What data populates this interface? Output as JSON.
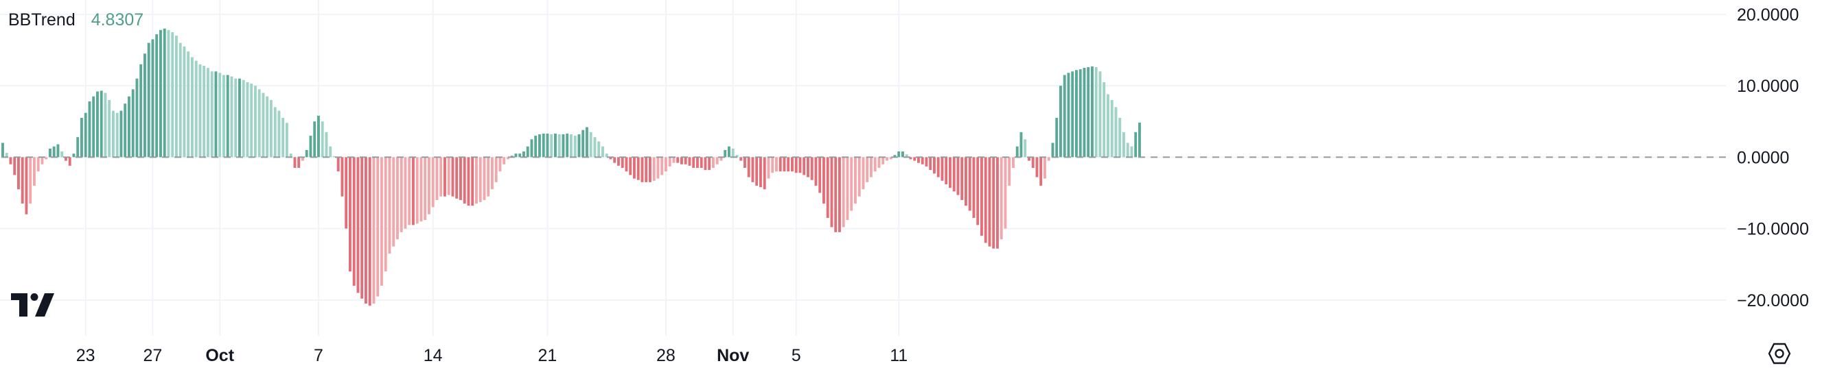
{
  "legend": {
    "indicator": "BBTrend",
    "value": "4.8307"
  },
  "colors": {
    "up_strong": "#5aa896",
    "up_weak": "#9fd3c6",
    "down_strong": "#e26f78",
    "down_weak": "#f0a8ad",
    "zero_line": "#9598a1",
    "grid": "#f0f3fa",
    "text": "#131722",
    "value_text": "#4f9e8c"
  },
  "icons": {
    "logo": "tradingview-logo-icon",
    "settings": "chart-settings-icon"
  },
  "chart_data": {
    "type": "bar",
    "series_name": "BBTrend",
    "ylim": [
      -25,
      22
    ],
    "y_ticks": [
      "20.0000",
      "10.0000",
      "0.0000",
      "−10.0000",
      "−20.0000"
    ],
    "y_tick_values": [
      20,
      10,
      0,
      -10,
      -20
    ],
    "x_ticks": [
      {
        "label": "23",
        "index": 21,
        "bold": false
      },
      {
        "label": "27",
        "index": 38,
        "bold": false
      },
      {
        "label": "Oct",
        "index": 55,
        "bold": true
      },
      {
        "label": "7",
        "index": 80,
        "bold": false
      },
      {
        "label": "14",
        "index": 109,
        "bold": false
      },
      {
        "label": "21",
        "index": 138,
        "bold": false
      },
      {
        "label": "28",
        "index": 168,
        "bold": false
      },
      {
        "label": "Nov",
        "index": 185,
        "bold": true
      },
      {
        "label": "5",
        "index": 201,
        "bold": false
      },
      {
        "label": "11",
        "index": 227,
        "bold": false
      }
    ],
    "grid": true,
    "legend_position": "top-left",
    "future_bars": 18,
    "values": [
      2.0,
      0.6,
      -1.0,
      -2.5,
      -4.5,
      -6.5,
      -8.0,
      -6.5,
      -4.0,
      -2.0,
      -1.0,
      -0.3,
      1.2,
      1.5,
      1.8,
      0.8,
      -0.5,
      -1.2,
      0.5,
      2.8,
      5.5,
      6.2,
      7.8,
      8.5,
      9.2,
      9.3,
      9.0,
      8.0,
      6.5,
      6.2,
      6.5,
      7.5,
      8.5,
      9.5,
      11.0,
      13.0,
      14.5,
      16.0,
      16.5,
      17.2,
      17.8,
      18.0,
      17.8,
      17.5,
      17.0,
      16.0,
      15.5,
      14.8,
      14.0,
      13.5,
      13.0,
      12.8,
      12.5,
      12.0,
      12.0,
      11.8,
      11.5,
      11.5,
      11.3,
      11.0,
      11.0,
      10.8,
      10.5,
      10.3,
      10.0,
      9.5,
      9.0,
      8.5,
      8.0,
      7.0,
      6.5,
      5.5,
      4.8,
      0.5,
      -1.5,
      -1.5,
      -0.5,
      1.0,
      3.0,
      5.0,
      5.8,
      5.0,
      3.5,
      1.5,
      0.0,
      -2.0,
      -5.5,
      -10.0,
      -16.0,
      -18.0,
      -19.0,
      -19.8,
      -20.5,
      -20.8,
      -20.5,
      -19.5,
      -18.0,
      -16.0,
      -13.5,
      -12.5,
      -11.5,
      -10.5,
      -10.0,
      -9.5,
      -9.5,
      -9.3,
      -9.0,
      -8.8,
      -8.0,
      -7.0,
      -6.0,
      -5.5,
      -5.5,
      -5.3,
      -5.5,
      -5.8,
      -6.0,
      -6.5,
      -6.8,
      -6.8,
      -6.5,
      -6.3,
      -6.0,
      -5.5,
      -4.5,
      -3.5,
      -2.0,
      -1.0,
      -0.3,
      0.2,
      0.5,
      0.5,
      0.8,
      1.5,
      2.5,
      3.0,
      3.2,
      3.3,
      3.3,
      3.2,
      3.3,
      3.2,
      3.2,
      3.3,
      3.2,
      3.0,
      3.2,
      3.8,
      4.2,
      3.5,
      2.8,
      2.2,
      1.5,
      0.5,
      -0.3,
      -0.8,
      -1.2,
      -1.5,
      -2.0,
      -2.5,
      -3.0,
      -3.2,
      -3.5,
      -3.5,
      -3.5,
      -3.3,
      -3.0,
      -2.5,
      -2.0,
      -1.3,
      -0.8,
      -0.8,
      -1.0,
      -1.0,
      -1.2,
      -1.5,
      -1.5,
      -1.5,
      -1.8,
      -1.8,
      -1.5,
      -1.0,
      -0.5,
      1.0,
      1.5,
      1.2,
      0.3,
      -0.5,
      -1.5,
      -2.8,
      -3.5,
      -4.0,
      -4.2,
      -4.5,
      -3.0,
      -2.2,
      -2.0,
      -2.0,
      -2.0,
      -2.0,
      -2.0,
      -2.2,
      -2.2,
      -2.5,
      -2.8,
      -3.2,
      -4.0,
      -5.0,
      -6.5,
      -8.5,
      -9.8,
      -10.5,
      -10.5,
      -9.8,
      -8.8,
      -7.5,
      -6.5,
      -5.5,
      -4.5,
      -3.5,
      -2.8,
      -2.0,
      -1.5,
      -1.0,
      -0.5,
      -0.3,
      0.3,
      0.8,
      0.8,
      0.4,
      -0.3,
      -0.5,
      -0.8,
      -1.0,
      -1.3,
      -1.8,
      -2.3,
      -2.8,
      -3.3,
      -3.8,
      -4.3,
      -4.8,
      -5.3,
      -6.0,
      -6.8,
      -7.5,
      -8.5,
      -9.5,
      -11.0,
      -12.0,
      -12.5,
      -12.8,
      -12.8,
      -11.5,
      -10.0,
      -4.0,
      -1.5,
      1.5,
      3.5,
      2.5,
      -0.5,
      -1.5,
      -2.8,
      -4.0,
      -3.0,
      -0.5,
      2.0,
      5.5,
      10.0,
      11.5,
      11.8,
      12.0,
      12.2,
      12.3,
      12.5,
      12.6,
      12.7,
      12.6,
      12.0,
      10.5,
      8.8,
      8.0,
      7.0,
      5.5,
      3.5,
      2.0,
      1.5,
      3.5,
      4.8307
    ]
  }
}
